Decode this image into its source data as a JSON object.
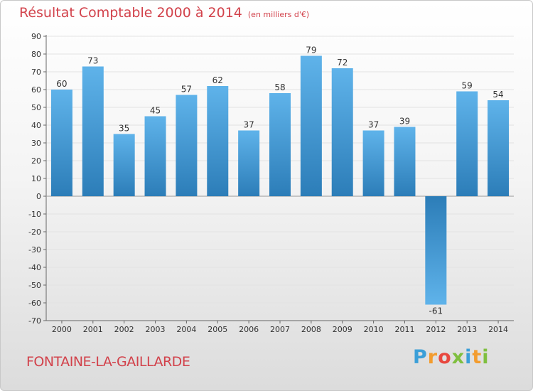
{
  "header": {
    "title": "Résultat Comptable 2000 à 2014",
    "subtitle": "(en milliers d'€)"
  },
  "footer": {
    "commune": "FONTAINE-LA-GAILLARDE",
    "logo_letters": [
      "P",
      "r",
      "o",
      "x",
      "i",
      "t",
      "i"
    ],
    "logo_colors": [
      "#3b9fd8",
      "#f39c2e",
      "#e8483f",
      "#7fbf3f",
      "#3b9fd8",
      "#f39c2e",
      "#7fbf3f"
    ]
  },
  "colors": {
    "bar_light": "#5fb3ea",
    "bar_dark": "#2c7db8",
    "title": "#d2424b"
  },
  "chart_data": {
    "type": "bar",
    "title": "Résultat Comptable 2000 à 2014",
    "subtitle": "(en milliers d'€)",
    "categories": [
      "2000",
      "2001",
      "2002",
      "2003",
      "2004",
      "2005",
      "2006",
      "2007",
      "2008",
      "2009",
      "2010",
      "2011",
      "2012",
      "2013",
      "2014"
    ],
    "values": [
      60,
      73,
      35,
      45,
      57,
      62,
      37,
      58,
      79,
      72,
      37,
      39,
      -61,
      59,
      54
    ],
    "xlabel": "",
    "ylabel": "",
    "ylim": [
      -70,
      90
    ],
    "yticks": [
      90,
      80,
      70,
      60,
      50,
      40,
      30,
      20,
      10,
      0,
      -10,
      -20,
      -30,
      -40,
      -50,
      -60,
      -70
    ],
    "grid": true,
    "legend": "none"
  }
}
